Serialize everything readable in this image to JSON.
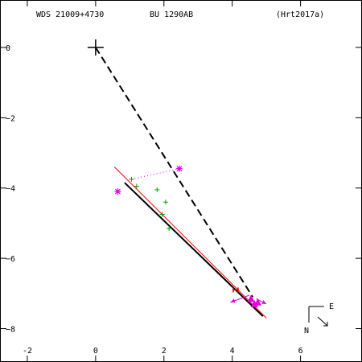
{
  "header": {
    "wds": "WDS 21009+4730",
    "discoverer": "BU 1290AB",
    "reference": "(Hrt2017a)"
  },
  "compass": {
    "east": "E",
    "north": "N"
  },
  "chart_data": {
    "type": "scatter",
    "xlim": [
      -2.8,
      7.8
    ],
    "ylim": [
      -8.95,
      1.35
    ],
    "x_ticks": [
      -2,
      0,
      2,
      4,
      6
    ],
    "y_ticks": [
      0,
      -2,
      -4,
      -6,
      -8
    ],
    "x_tick_labels": [
      "-2",
      "0",
      "2",
      "4",
      "6"
    ],
    "y_tick_labels": [
      "0",
      "−2",
      "−4",
      "−6",
      "−8"
    ],
    "primary": {
      "x": 0,
      "y": 0
    },
    "dashed_line": {
      "x": [
        0,
        4.6
      ],
      "y": [
        0,
        -7.1
      ]
    },
    "fit_line_black": {
      "x": [
        0.85,
        4.9
      ],
      "y": [
        -3.85,
        -7.65
      ]
    },
    "fit_line_red": {
      "x": [
        0.55,
        5.0
      ],
      "y": [
        -3.4,
        -7.7
      ]
    },
    "observations_green": {
      "x": [
        1.05,
        1.2,
        1.8,
        2.05,
        1.95,
        2.15
      ],
      "y": [
        -3.75,
        -3.95,
        -4.05,
        -4.4,
        -4.75,
        -5.15
      ]
    },
    "asterisks_magenta": {
      "x": [
        0.65,
        2.45
      ],
      "y": [
        -4.1,
        -3.45
      ]
    },
    "asterisk_link": {
      "x": [
        1.05,
        2.45
      ],
      "y": [
        -3.75,
        -3.45
      ]
    },
    "triangles_magenta": {
      "x": [
        4.55,
        4.75,
        4.65
      ],
      "y": [
        -7.15,
        -7.25,
        -7.3
      ]
    },
    "residual_vectors": [
      {
        "x": [
          4.5,
          3.95
        ],
        "y": [
          -7.05,
          -7.25
        ]
      },
      {
        "x": [
          4.7,
          5.0
        ],
        "y": [
          -7.15,
          -7.3
        ]
      }
    ],
    "red_marker": {
      "x": 4.1,
      "y": -6.9
    }
  }
}
